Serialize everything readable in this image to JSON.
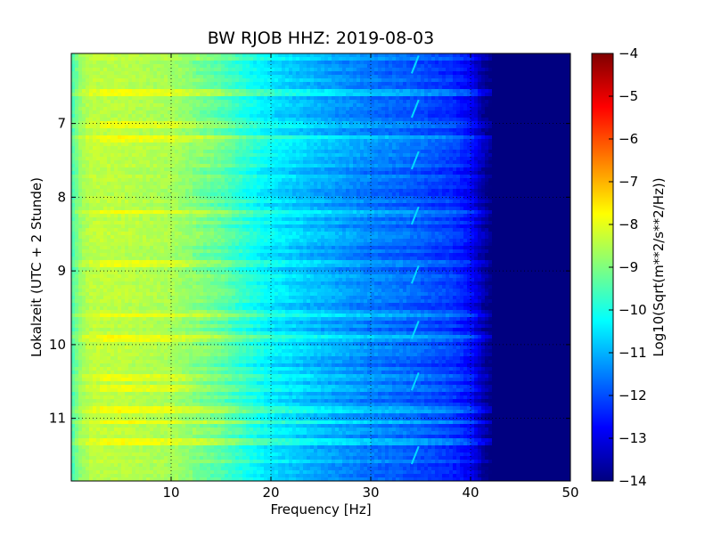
{
  "chart_data": {
    "type": "heatmap",
    "title": "BW RJOB HHZ: 2019-08-03",
    "xlabel": "Frequency [Hz]",
    "ylabel": "Lokalzeit (UTC + 2 Stunde)",
    "xlim": [
      0,
      50
    ],
    "ylim": [
      6.05,
      11.85
    ],
    "y_inverted": true,
    "x_ticks": [
      10,
      20,
      30,
      40,
      50
    ],
    "y_ticks": [
      7,
      8,
      9,
      10,
      11
    ],
    "grid": true,
    "grid_style": "dotted",
    "colormap": "jet",
    "colorbar": {
      "label": "Log10(Sqrt(m**2/s**2/Hz))",
      "range": [
        -14,
        -4
      ],
      "ticks": [
        -4,
        -5,
        -6,
        -7,
        -8,
        -9,
        -10,
        -11,
        -12,
        -13,
        -14
      ],
      "colors": [
        "#00007f",
        "#0000ff",
        "#007fff",
        "#00ffff",
        "#7fff7f",
        "#ffff00",
        "#ff7f00",
        "#ff0000",
        "#7f0000"
      ]
    },
    "spectrum_profile": {
      "frequency_hz": [
        0,
        1,
        2,
        5,
        10,
        15,
        18,
        20,
        25,
        30,
        33,
        35,
        38,
        40,
        41,
        42,
        45,
        50
      ],
      "log10_amplitude": [
        -9.6,
        -8.7,
        -8.4,
        -8.4,
        -8.6,
        -9.3,
        -10.0,
        -10.4,
        -11.0,
        -11.5,
        -11.7,
        -11.9,
        -12.2,
        -12.7,
        -13.4,
        -14.0,
        -14.0,
        -14.0
      ]
    },
    "bright_bands_local_time": [
      6.6,
      7.0,
      7.2,
      8.2,
      8.9,
      9.6,
      9.92,
      10.45,
      10.6,
      10.9,
      11.05,
      11.3
    ],
    "tremor_feature": {
      "frequency_hz": 34.5,
      "times_local": [
        6.2,
        6.8,
        7.5,
        8.25,
        9.05,
        9.8,
        10.5,
        11.5
      ]
    }
  }
}
